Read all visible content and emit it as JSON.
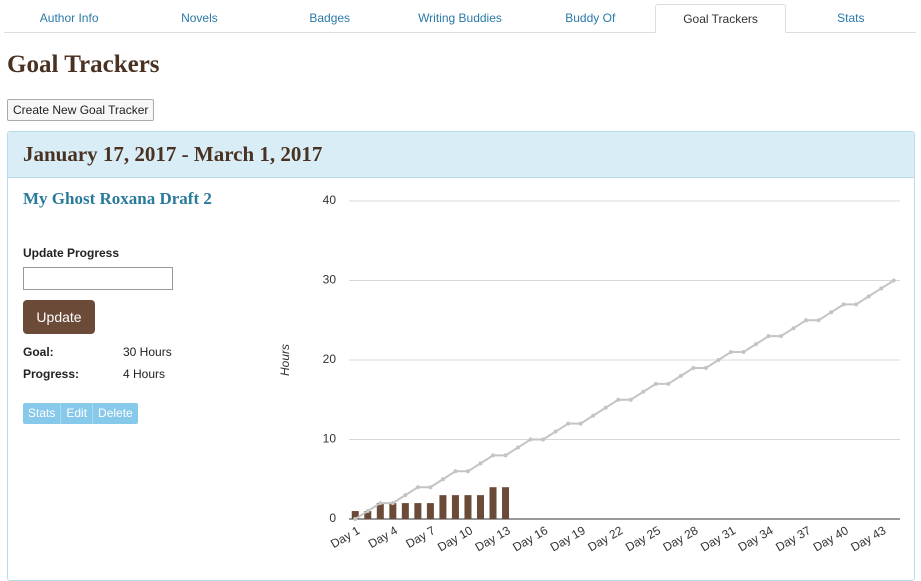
{
  "tabs": [
    "Author Info",
    "Novels",
    "Badges",
    "Writing Buddies",
    "Buddy Of",
    "Goal Trackers",
    "Stats"
  ],
  "active_tab": 5,
  "page_title": "Goal Trackers",
  "create_button": "Create New Goal Tracker",
  "tracker": {
    "date_range": "January 17, 2017 - March 1, 2017",
    "name": "My Ghost Roxana Draft 2",
    "update_label": "Update Progress",
    "update_button": "Update",
    "goal_label": "Goal:",
    "goal_value": "30 Hours",
    "progress_label": "Progress:",
    "progress_value": "4 Hours",
    "actions": [
      "Stats",
      "Edit",
      "Delete"
    ]
  },
  "chart_data": {
    "type": "combo",
    "y_label": "Hours",
    "categories": [
      "Day 1",
      null,
      null,
      "Day 4",
      null,
      null,
      "Day 7",
      null,
      null,
      "Day 10",
      null,
      null,
      "Day 13",
      null,
      null,
      "Day 16",
      null,
      null,
      "Day 19",
      null,
      null,
      "Day 22",
      null,
      null,
      "Day 25",
      null,
      null,
      "Day 28",
      null,
      null,
      "Day 31",
      null,
      null,
      "Day 34",
      null,
      null,
      "Day 37",
      null,
      null,
      "Day 40",
      null,
      null,
      "Day 43",
      null
    ],
    "series": [
      {
        "type": "bar",
        "color": "#6b4a38",
        "values": [
          1,
          1,
          2,
          2,
          2,
          2,
          2,
          3,
          3,
          3,
          3,
          4,
          4,
          null,
          null,
          null,
          null,
          null,
          null,
          null,
          null,
          null,
          null,
          null,
          null,
          null,
          null,
          null,
          null,
          null,
          null,
          null,
          null,
          null,
          null,
          null,
          null,
          null,
          null,
          null,
          null,
          null,
          null,
          null
        ]
      },
      {
        "type": "line",
        "color": "#c4c4c4",
        "values": [
          0,
          1,
          2,
          2,
          3,
          4,
          4,
          5,
          6,
          6,
          7,
          8,
          8,
          9,
          10,
          10,
          11,
          12,
          12,
          13,
          14,
          15,
          15,
          16,
          17,
          17,
          18,
          19,
          19,
          20,
          21,
          21,
          22,
          23,
          23,
          24,
          25,
          25,
          26,
          27,
          27,
          28,
          29,
          30
        ]
      }
    ],
    "ylim": [
      0,
      40
    ],
    "yticks": [
      0,
      10,
      20,
      30,
      40
    ],
    "grid": true
  }
}
